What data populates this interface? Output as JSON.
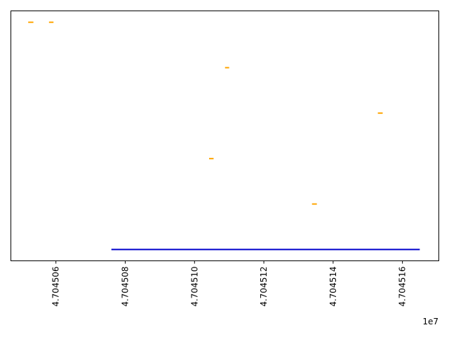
{
  "chart_data": {
    "type": "timeline",
    "xlabel": "",
    "ylabel": "",
    "x_offset_label": "1e7",
    "xlim": [
      47045047,
      47045170.5
    ],
    "ylim": [
      -0.25,
      5.25
    ],
    "x_ticks": [
      {
        "value": 47045060,
        "label": "4.704506"
      },
      {
        "value": 47045080,
        "label": "4.704508"
      },
      {
        "value": 47045100,
        "label": "4.704510"
      },
      {
        "value": 47045120,
        "label": "4.704512"
      },
      {
        "value": 47045140,
        "label": "4.704514"
      },
      {
        "value": 47045160,
        "label": "4.704516"
      }
    ],
    "grid": false,
    "series": [
      {
        "color": "#0000cc",
        "segments": [
          {
            "y": 0,
            "x_start": 47045076,
            "x_end": 47045165
          }
        ]
      },
      {
        "color": "#ffa500",
        "segments": [
          {
            "y": 5,
            "x_start": 47045052.0,
            "x_end": 47045053.5
          },
          {
            "y": 5,
            "x_start": 47045058.0,
            "x_end": 47045059.3
          },
          {
            "y": 4,
            "x_start": 47045108.8,
            "x_end": 47045110.0
          },
          {
            "y": 3,
            "x_start": 47045152.9,
            "x_end": 47045154.3
          },
          {
            "y": 2,
            "x_start": 47045104.2,
            "x_end": 47045105.5
          },
          {
            "y": 1,
            "x_start": 47045133.9,
            "x_end": 47045135.3
          }
        ]
      }
    ]
  }
}
